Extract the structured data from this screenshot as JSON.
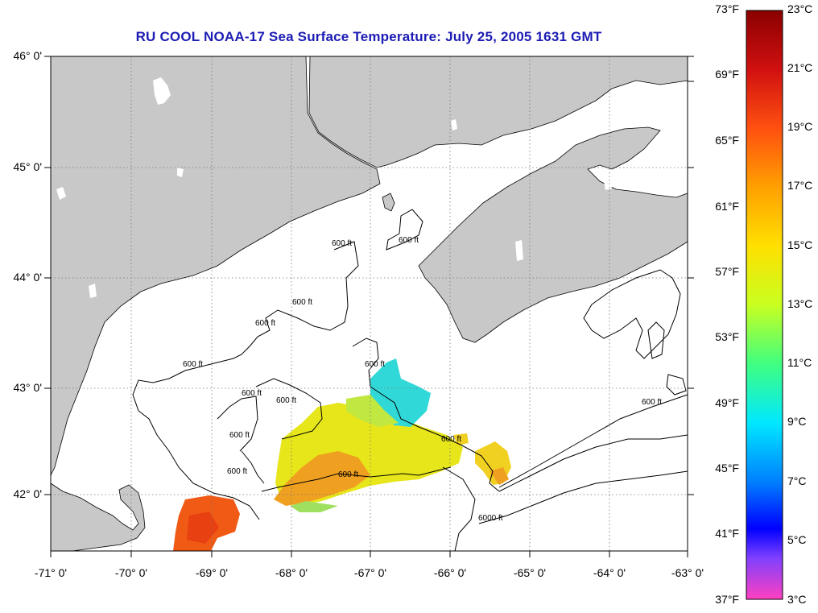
{
  "title": "RU COOL  NOAA-17  Sea Surface Temperature:  July 25, 2005 1631 GMT",
  "map": {
    "lat_labels": [
      "46° 0'",
      "45° 0'",
      "44° 0'",
      "43° 0'",
      "42° 0'"
    ],
    "lat_values": [
      46,
      45,
      44,
      43,
      42
    ],
    "lon_labels": [
      "-71° 0'",
      "-70° 0'",
      "-69° 0'",
      "-68° 0'",
      "-67° 0'",
      "-66° 0'",
      "-65° 0'",
      "-64° 0'",
      "-63° 0'"
    ],
    "lon_values": [
      -71,
      -70,
      -69,
      -68,
      -67,
      -66,
      -65,
      -64,
      -63
    ],
    "contour_labels": [
      "600 ft",
      "600 ft",
      "600 ft",
      "600 ft",
      "600 ft",
      "600 ft",
      "600 ft",
      "600 ft",
      "600 ft",
      "600 ft",
      "600 ft",
      "600 ft",
      "600 ft",
      "6000 ft"
    ],
    "colors": {
      "land": "#c8c8c8",
      "water": "#ffffff",
      "contour": "#000000",
      "grid": "#777777"
    }
  },
  "colorbar": {
    "fahrenheit_labels": [
      "73°F",
      "69°F",
      "65°F",
      "61°F",
      "57°F",
      "53°F",
      "49°F",
      "45°F",
      "41°F",
      "37°F"
    ],
    "celsius_labels": [
      "23°C",
      "21°C",
      "19°C",
      "17°C",
      "15°C",
      "13°C",
      "11°C",
      "9°C",
      "7°C",
      "5°C",
      "3°C"
    ],
    "range_celsius": [
      3,
      23
    ]
  }
}
